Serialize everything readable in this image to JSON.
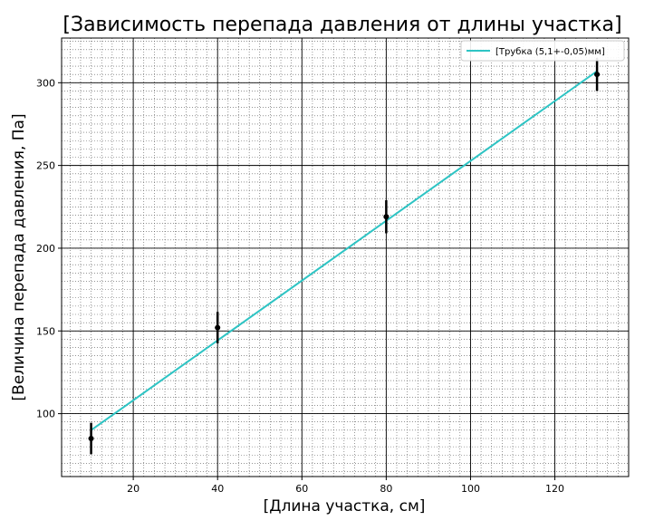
{
  "chart_data": {
    "type": "line",
    "title": "[Зависимость перепада давления от длины участка]",
    "xlabel": "[Длина участка, см]",
    "ylabel": "[Величина перепада давления, Па]",
    "xlim": [
      3,
      137.5
    ],
    "ylim": [
      62,
      327
    ],
    "xticks": [
      20,
      40,
      60,
      80,
      100,
      120
    ],
    "yticks": [
      100,
      150,
      200,
      250,
      300
    ],
    "xminor_step": 2.5,
    "yminor_step": 5,
    "grid": true,
    "legend_position": "top-right",
    "series": [
      {
        "name": "[Трубка (5,1+-0,05)мм]",
        "type": "line",
        "color": "#2ec4c4",
        "x": [
          10,
          130
        ],
        "y": [
          90,
          307
        ]
      }
    ],
    "points": {
      "x": [
        10,
        40,
        80,
        130
      ],
      "y": [
        85,
        152,
        219,
        305
      ],
      "yerr": [
        9.5,
        9.5,
        10,
        10
      ],
      "xerr": [
        0.6,
        0.6,
        0.6,
        0.6
      ],
      "color": "#000000"
    }
  }
}
